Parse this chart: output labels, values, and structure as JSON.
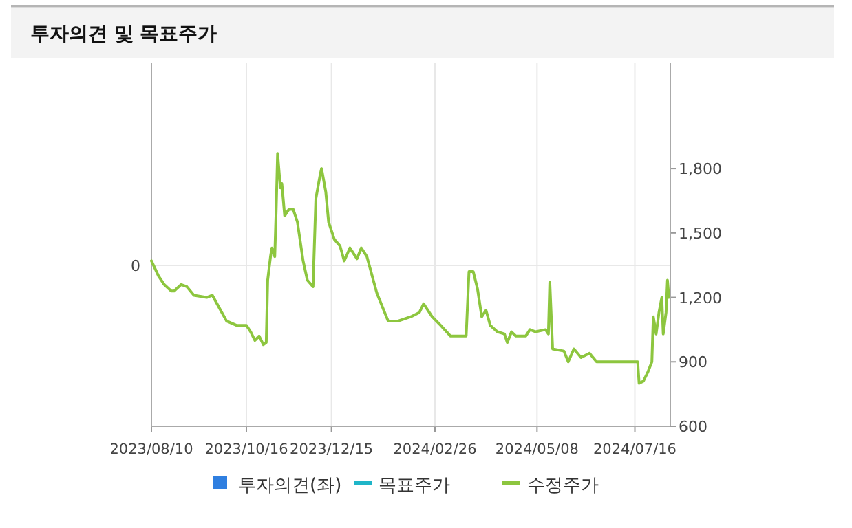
{
  "chart_data": {
    "type": "line",
    "title": "투자의견 및 목표주가",
    "xlim": [
      "2023-08-10",
      "2024-08-10"
    ],
    "xticks": [
      {
        "value": "2023-08-10",
        "label": "2023/08/10"
      },
      {
        "value": "2023-10-16",
        "label": "2023/10/16"
      },
      {
        "value": "2023-12-15",
        "label": "2023/12/15"
      },
      {
        "value": "2024-02-26",
        "label": "2024/02/26"
      },
      {
        "value": "2024-05-08",
        "label": "2024/05/08"
      },
      {
        "value": "2024-07-16",
        "label": "2024/07/16"
      }
    ],
    "annotations": [
      "0"
    ],
    "y2lim": [
      600,
      2290
    ],
    "y2ticks": [
      600,
      900,
      {
        "value": 1200,
        "label": "1,200"
      },
      {
        "value": 1500,
        "label": "1,500"
      },
      {
        "value": 1800,
        "label": "1,800"
      }
    ],
    "grid": true,
    "legend": "bottom",
    "series": [
      {
        "name": "투자의견(좌)",
        "type": "bar",
        "color": "#2f7fe0"
      },
      {
        "name": "목표주가",
        "color": "#1fb5c8"
      },
      {
        "name": "수정주가",
        "color": "#8dc63f",
        "axis": "y2",
        "x": [
          "2023-08-10",
          "2023-08-15",
          "2023-08-19",
          "2023-08-24",
          "2023-08-26",
          "2023-08-31",
          "2023-09-04",
          "2023-09-09",
          "2023-09-18",
          "2023-09-22",
          "2023-09-27",
          "2023-10-02",
          "2023-10-09",
          "2023-10-16",
          "2023-10-19",
          "2023-10-22",
          "2023-10-25",
          "2023-10-28",
          "2023-10-30",
          "2023-10-31",
          "2023-11-02",
          "2023-11-03",
          "2023-11-05",
          "2023-11-06",
          "2023-11-07",
          "2023-11-09",
          "2023-11-10",
          "2023-11-12",
          "2023-11-15",
          "2023-11-18",
          "2023-11-21",
          "2023-11-25",
          "2023-11-28",
          "2023-12-02",
          "2023-12-04",
          "2023-12-07",
          "2023-12-08",
          "2023-12-11",
          "2023-12-13",
          "2023-12-17",
          "2023-12-21",
          "2023-12-24",
          "2023-12-28",
          "2024-01-02",
          "2024-01-05",
          "2024-01-09",
          "2024-01-16",
          "2024-01-24",
          "2024-01-31",
          "2024-02-09",
          "2024-02-15",
          "2024-02-18",
          "2024-02-24",
          "2024-03-01",
          "2024-03-08",
          "2024-03-19",
          "2024-03-21",
          "2024-03-24",
          "2024-03-27",
          "2024-03-30",
          "2024-04-02",
          "2024-04-05",
          "2024-04-10",
          "2024-04-15",
          "2024-04-17",
          "2024-04-20",
          "2024-04-23",
          "2024-04-30",
          "2024-05-03",
          "2024-05-07",
          "2024-05-14",
          "2024-05-16",
          "2024-05-17",
          "2024-05-19",
          "2024-05-27",
          "2024-05-30",
          "2024-06-03",
          "2024-06-08",
          "2024-06-14",
          "2024-06-19",
          "2024-07-18",
          "2024-07-19",
          "2024-07-22",
          "2024-07-25",
          "2024-07-28",
          "2024-07-29",
          "2024-07-31",
          "2024-08-02",
          "2024-08-04",
          "2024-08-05",
          "2024-08-07",
          "2024-08-08",
          "2024-08-09"
        ],
        "values": [
          1370,
          1300,
          1260,
          1230,
          1230,
          1260,
          1250,
          1210,
          1200,
          1210,
          1150,
          1090,
          1070,
          1070,
          1040,
          1000,
          1020,
          980,
          990,
          1280,
          1390,
          1430,
          1390,
          1610,
          1870,
          1710,
          1730,
          1580,
          1610,
          1610,
          1550,
          1370,
          1280,
          1250,
          1660,
          1770,
          1800,
          1690,
          1550,
          1470,
          1440,
          1370,
          1430,
          1380,
          1430,
          1390,
          1220,
          1090,
          1090,
          1110,
          1130,
          1170,
          1110,
          1070,
          1020,
          1020,
          1320,
          1320,
          1240,
          1110,
          1140,
          1070,
          1040,
          1030,
          990,
          1040,
          1020,
          1020,
          1050,
          1040,
          1050,
          1030,
          1270,
          960,
          950,
          900,
          960,
          920,
          940,
          900,
          900,
          800,
          810,
          850,
          900,
          1110,
          1030,
          1130,
          1200,
          1030,
          1130,
          1280,
          1200
        ]
      }
    ]
  }
}
